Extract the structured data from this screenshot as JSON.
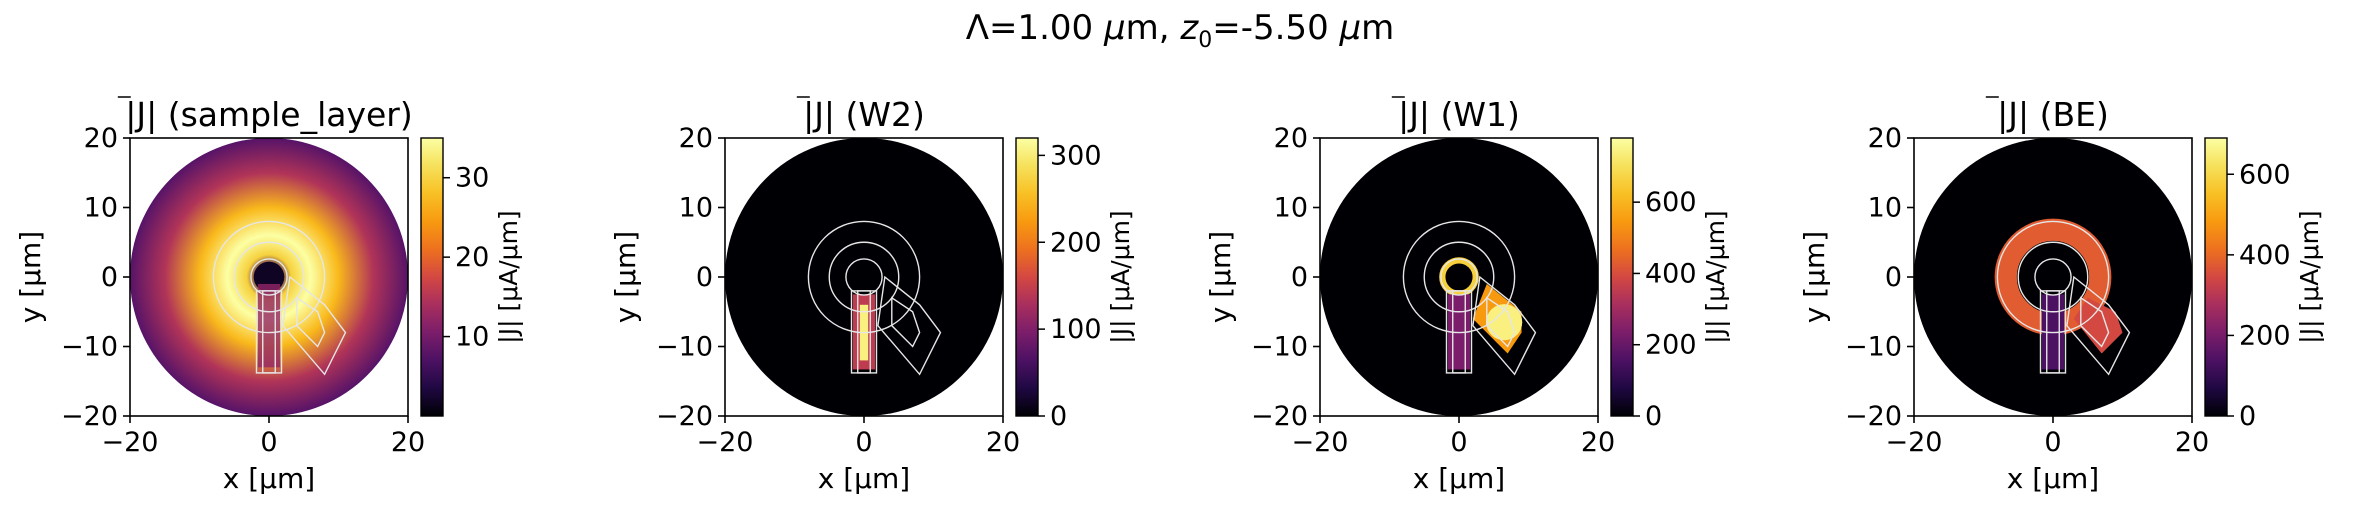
{
  "suptitle": "Λ=1.00 μm, z0=-5.50 μm",
  "chart_data": [
    {
      "type": "heatmap",
      "title": "|J| (sample_layer)",
      "xlabel": "x [µm]",
      "ylabel": "y [µm]",
      "xlim": [
        -20,
        20
      ],
      "ylim": [
        -20,
        20
      ],
      "xticks": [
        "−20",
        "0",
        "20"
      ],
      "yticks": [
        "−20",
        "−10",
        "0",
        "10",
        "20"
      ],
      "colorbar": {
        "label": "|J| [μA/μm]",
        "min": 0,
        "max": 35,
        "ticks": [
          "10",
          "20",
          "30"
        ],
        "tick_values": [
          10,
          20,
          30
        ]
      },
      "colormap": "inferno",
      "peak_value": 35,
      "distribution": "broad ring around central loop, dark core at origin"
    },
    {
      "type": "heatmap",
      "title": "|J| (W2)",
      "xlabel": "x [µm]",
      "ylabel": "y [µm]",
      "xlim": [
        -20,
        20
      ],
      "ylim": [
        -20,
        20
      ],
      "xticks": [
        "−20",
        "0",
        "20"
      ],
      "yticks": [
        "−20",
        "−10",
        "0",
        "10",
        "20"
      ],
      "colorbar": {
        "label": "|J| [μA/μm]",
        "min": 0,
        "max": 320,
        "ticks": [
          "0",
          "100",
          "200",
          "300"
        ],
        "tick_values": [
          0,
          100,
          200,
          300
        ]
      },
      "colormap": "inferno",
      "peak_value": 320,
      "distribution": "current confined to vertical lead strip"
    },
    {
      "type": "heatmap",
      "title": "|J| (W1)",
      "xlabel": "x [µm]",
      "ylabel": "y [µm]",
      "xlim": [
        -20,
        20
      ],
      "ylim": [
        -20,
        20
      ],
      "xticks": [
        "−20",
        "0",
        "20"
      ],
      "yticks": [
        "−20",
        "−10",
        "0",
        "10",
        "20"
      ],
      "colorbar": {
        "label": "|J| [μA/μm]",
        "min": 0,
        "max": 780,
        "ticks": [
          "0",
          "200",
          "400",
          "600"
        ],
        "tick_values": [
          0,
          200,
          400,
          600
        ]
      },
      "colormap": "inferno",
      "peak_value": 780,
      "distribution": "small loop and diagonal pad arm"
    },
    {
      "type": "heatmap",
      "title": "|J| (BE)",
      "xlabel": "x [µm]",
      "ylabel": "y [µm]",
      "xlim": [
        -20,
        20
      ],
      "ylim": [
        -20,
        20
      ],
      "xticks": [
        "−20",
        "0",
        "20"
      ],
      "yticks": [
        "−20",
        "−10",
        "0",
        "10",
        "20"
      ],
      "colorbar": {
        "label": "|J| [μA/μm]",
        "min": 0,
        "max": 690,
        "ticks": [
          "0",
          "200",
          "400",
          "600"
        ],
        "tick_values": [
          0,
          200,
          400,
          600
        ]
      },
      "colormap": "inferno",
      "peak_value": 690,
      "distribution": "annular ring with diagonal arm"
    }
  ]
}
